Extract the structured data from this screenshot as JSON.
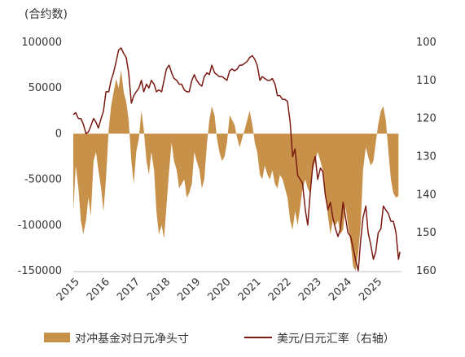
{
  "chart_data": {
    "type": "bar",
    "left_unit_label": "(合约数)",
    "x_tick_labels": [
      "2015",
      "2016",
      "2017",
      "2018",
      "2019",
      "2020",
      "2021",
      "2022",
      "2023",
      "2024",
      "2025"
    ],
    "left_axis": {
      "ticks": [
        100000,
        50000,
        0,
        -50000,
        -100000,
        -150000
      ],
      "tick_labels": [
        "100000",
        "50000",
        "0",
        "-50000",
        "-100000",
        "-150000"
      ],
      "ylim": [
        -150000,
        100000
      ]
    },
    "right_axis": {
      "ticks": [
        100,
        110,
        120,
        130,
        140,
        150,
        160
      ],
      "tick_labels": [
        "100",
        "110",
        "120",
        "130",
        "140",
        "150",
        "160"
      ],
      "ylim": [
        160,
        100
      ],
      "inverted": true
    },
    "legend_position": "bottom",
    "grid": false,
    "series": [
      {
        "name": "对冲基金对日元净头寸",
        "kind": "area",
        "axis": "left",
        "color": "#C8914A",
        "points": [
          [
            2015.0,
            -85000
          ],
          [
            2015.08,
            -35000
          ],
          [
            2015.17,
            -60000
          ],
          [
            2015.25,
            -95000
          ],
          [
            2015.33,
            -110000
          ],
          [
            2015.42,
            -95000
          ],
          [
            2015.5,
            -70000
          ],
          [
            2015.58,
            -90000
          ],
          [
            2015.67,
            -30000
          ],
          [
            2015.75,
            -20000
          ],
          [
            2015.83,
            -40000
          ],
          [
            2015.92,
            -60000
          ],
          [
            2016.0,
            -85000
          ],
          [
            2016.08,
            -50000
          ],
          [
            2016.17,
            5000
          ],
          [
            2016.25,
            30000
          ],
          [
            2016.33,
            45000
          ],
          [
            2016.42,
            60000
          ],
          [
            2016.5,
            50000
          ],
          [
            2016.58,
            70000
          ],
          [
            2016.67,
            45000
          ],
          [
            2016.75,
            35000
          ],
          [
            2016.83,
            15000
          ],
          [
            2016.92,
            -30000
          ],
          [
            2017.0,
            -55000
          ],
          [
            2017.08,
            -20000
          ],
          [
            2017.17,
            -5000
          ],
          [
            2017.25,
            25000
          ],
          [
            2017.33,
            5000
          ],
          [
            2017.42,
            -30000
          ],
          [
            2017.5,
            -45000
          ],
          [
            2017.58,
            -20000
          ],
          [
            2017.67,
            -40000
          ],
          [
            2017.75,
            -85000
          ],
          [
            2017.83,
            -110000
          ],
          [
            2017.92,
            -100000
          ],
          [
            2018.0,
            -115000
          ],
          [
            2018.08,
            -80000
          ],
          [
            2018.17,
            -40000
          ],
          [
            2018.25,
            -10000
          ],
          [
            2018.33,
            -30000
          ],
          [
            2018.42,
            -40000
          ],
          [
            2018.5,
            -60000
          ],
          [
            2018.58,
            -55000
          ],
          [
            2018.67,
            -50000
          ],
          [
            2018.75,
            -70000
          ],
          [
            2018.83,
            -65000
          ],
          [
            2018.92,
            -55000
          ],
          [
            2019.0,
            -20000
          ],
          [
            2019.08,
            -30000
          ],
          [
            2019.17,
            -40000
          ],
          [
            2019.25,
            -60000
          ],
          [
            2019.33,
            -50000
          ],
          [
            2019.42,
            -10000
          ],
          [
            2019.5,
            15000
          ],
          [
            2019.58,
            30000
          ],
          [
            2019.67,
            20000
          ],
          [
            2019.75,
            -5000
          ],
          [
            2019.83,
            -20000
          ],
          [
            2019.92,
            -30000
          ],
          [
            2020.0,
            -25000
          ],
          [
            2020.08,
            -10000
          ],
          [
            2020.17,
            20000
          ],
          [
            2020.25,
            15000
          ],
          [
            2020.33,
            10000
          ],
          [
            2020.42,
            -5000
          ],
          [
            2020.5,
            -15000
          ],
          [
            2020.58,
            -5000
          ],
          [
            2020.67,
            5000
          ],
          [
            2020.75,
            15000
          ],
          [
            2020.83,
            25000
          ],
          [
            2020.92,
            10000
          ],
          [
            2021.0,
            -10000
          ],
          [
            2021.08,
            -20000
          ],
          [
            2021.17,
            -45000
          ],
          [
            2021.25,
            -50000
          ],
          [
            2021.33,
            -35000
          ],
          [
            2021.42,
            -45000
          ],
          [
            2021.5,
            -50000
          ],
          [
            2021.58,
            -40000
          ],
          [
            2021.67,
            -55000
          ],
          [
            2021.75,
            -60000
          ],
          [
            2021.83,
            -45000
          ],
          [
            2021.92,
            -50000
          ],
          [
            2022.0,
            -60000
          ],
          [
            2022.08,
            -70000
          ],
          [
            2022.17,
            -95000
          ],
          [
            2022.25,
            -105000
          ],
          [
            2022.33,
            -85000
          ],
          [
            2022.42,
            -100000
          ],
          [
            2022.5,
            -80000
          ],
          [
            2022.58,
            -60000
          ],
          [
            2022.67,
            -50000
          ],
          [
            2022.75,
            -60000
          ],
          [
            2022.83,
            -65000
          ],
          [
            2022.92,
            -40000
          ],
          [
            2023.0,
            -30000
          ],
          [
            2023.08,
            -20000
          ],
          [
            2023.17,
            -30000
          ],
          [
            2023.25,
            -40000
          ],
          [
            2023.33,
            -65000
          ],
          [
            2023.42,
            -90000
          ],
          [
            2023.5,
            -110000
          ],
          [
            2023.58,
            -95000
          ],
          [
            2023.67,
            -100000
          ],
          [
            2023.75,
            -95000
          ],
          [
            2023.83,
            -110000
          ],
          [
            2023.92,
            -105000
          ],
          [
            2024.0,
            -80000
          ],
          [
            2024.08,
            -100000
          ],
          [
            2024.17,
            -120000
          ],
          [
            2024.25,
            -145000
          ],
          [
            2024.33,
            -150000
          ],
          [
            2024.42,
            -130000
          ],
          [
            2024.5,
            -100000
          ],
          [
            2024.58,
            -40000
          ],
          [
            2024.67,
            -15000
          ],
          [
            2024.75,
            -25000
          ],
          [
            2024.83,
            -35000
          ],
          [
            2024.92,
            -30000
          ],
          [
            2025.0,
            -10000
          ],
          [
            2025.08,
            10000
          ],
          [
            2025.17,
            25000
          ],
          [
            2025.25,
            30000
          ],
          [
            2025.33,
            15000
          ],
          [
            2025.42,
            -20000
          ],
          [
            2025.5,
            -50000
          ],
          [
            2025.58,
            -65000
          ],
          [
            2025.67,
            -70000
          ],
          [
            2025.75,
            -68000
          ]
        ]
      },
      {
        "name": "美元/日元汇率（右轴）",
        "kind": "line",
        "axis": "right",
        "color": "#7B1A12",
        "points": [
          [
            2015.0,
            119
          ],
          [
            2015.08,
            118.5
          ],
          [
            2015.17,
            120
          ],
          [
            2015.25,
            120
          ],
          [
            2015.33,
            121.5
          ],
          [
            2015.42,
            124
          ],
          [
            2015.5,
            123.5
          ],
          [
            2015.58,
            122
          ],
          [
            2015.67,
            120
          ],
          [
            2015.75,
            121
          ],
          [
            2015.83,
            122.5
          ],
          [
            2015.92,
            120
          ],
          [
            2016.0,
            118
          ],
          [
            2016.08,
            113
          ],
          [
            2016.17,
            113
          ],
          [
            2016.25,
            110
          ],
          [
            2016.33,
            108
          ],
          [
            2016.42,
            105
          ],
          [
            2016.5,
            102
          ],
          [
            2016.58,
            101.5
          ],
          [
            2016.67,
            103
          ],
          [
            2016.75,
            104
          ],
          [
            2016.83,
            108
          ],
          [
            2016.92,
            116
          ],
          [
            2017.0,
            114
          ],
          [
            2017.08,
            113
          ],
          [
            2017.17,
            112
          ],
          [
            2017.25,
            110
          ],
          [
            2017.33,
            113
          ],
          [
            2017.42,
            111
          ],
          [
            2017.5,
            112
          ],
          [
            2017.58,
            110
          ],
          [
            2017.67,
            111
          ],
          [
            2017.75,
            113
          ],
          [
            2017.83,
            112.5
          ],
          [
            2017.92,
            113
          ],
          [
            2018.0,
            110
          ],
          [
            2018.08,
            107
          ],
          [
            2018.17,
            106
          ],
          [
            2018.25,
            108
          ],
          [
            2018.33,
            109.5
          ],
          [
            2018.42,
            110
          ],
          [
            2018.5,
            111
          ],
          [
            2018.58,
            111
          ],
          [
            2018.67,
            112.5
          ],
          [
            2018.75,
            113
          ],
          [
            2018.83,
            113
          ],
          [
            2018.92,
            110
          ],
          [
            2019.0,
            108.5
          ],
          [
            2019.08,
            110
          ],
          [
            2019.17,
            111
          ],
          [
            2019.25,
            111.5
          ],
          [
            2019.33,
            109
          ],
          [
            2019.42,
            108
          ],
          [
            2019.5,
            108.5
          ],
          [
            2019.58,
            106
          ],
          [
            2019.67,
            108
          ],
          [
            2019.75,
            108.5
          ],
          [
            2019.83,
            109
          ],
          [
            2019.92,
            109
          ],
          [
            2020.0,
            109.5
          ],
          [
            2020.08,
            110
          ],
          [
            2020.17,
            107.5
          ],
          [
            2020.25,
            107
          ],
          [
            2020.33,
            107.5
          ],
          [
            2020.42,
            107
          ],
          [
            2020.5,
            106
          ],
          [
            2020.58,
            106
          ],
          [
            2020.67,
            105.5
          ],
          [
            2020.75,
            105
          ],
          [
            2020.83,
            104
          ],
          [
            2020.92,
            103.5
          ],
          [
            2021.0,
            104.5
          ],
          [
            2021.08,
            106
          ],
          [
            2021.17,
            110
          ],
          [
            2021.25,
            109
          ],
          [
            2021.33,
            109.5
          ],
          [
            2021.42,
            110
          ],
          [
            2021.5,
            110
          ],
          [
            2021.58,
            109.5
          ],
          [
            2021.67,
            111
          ],
          [
            2021.75,
            114
          ],
          [
            2021.83,
            114
          ],
          [
            2021.92,
            115
          ],
          [
            2022.0,
            115
          ],
          [
            2022.08,
            115.5
          ],
          [
            2022.17,
            121
          ],
          [
            2022.25,
            130
          ],
          [
            2022.33,
            128
          ],
          [
            2022.42,
            135
          ],
          [
            2022.5,
            136
          ],
          [
            2022.58,
            137
          ],
          [
            2022.67,
            144
          ],
          [
            2022.75,
            148
          ],
          [
            2022.83,
            140
          ],
          [
            2022.92,
            132
          ],
          [
            2023.0,
            130
          ],
          [
            2023.08,
            136
          ],
          [
            2023.17,
            133
          ],
          [
            2023.25,
            134
          ],
          [
            2023.33,
            140
          ],
          [
            2023.42,
            144
          ],
          [
            2023.5,
            142
          ],
          [
            2023.58,
            146
          ],
          [
            2023.67,
            149
          ],
          [
            2023.75,
            151
          ],
          [
            2023.83,
            149
          ],
          [
            2023.92,
            142
          ],
          [
            2024.0,
            146
          ],
          [
            2024.08,
            150
          ],
          [
            2024.17,
            151
          ],
          [
            2024.25,
            154
          ],
          [
            2024.33,
            157
          ],
          [
            2024.42,
            160
          ],
          [
            2024.5,
            152
          ],
          [
            2024.58,
            146
          ],
          [
            2024.67,
            143
          ],
          [
            2024.75,
            150
          ],
          [
            2024.83,
            153
          ],
          [
            2024.92,
            157
          ],
          [
            2025.0,
            155
          ],
          [
            2025.08,
            150
          ],
          [
            2025.17,
            149
          ],
          [
            2025.25,
            143
          ],
          [
            2025.33,
            144
          ],
          [
            2025.42,
            145
          ],
          [
            2025.5,
            147
          ],
          [
            2025.58,
            147
          ],
          [
            2025.67,
            150
          ],
          [
            2025.75,
            157
          ],
          [
            2025.8,
            155
          ]
        ]
      }
    ]
  }
}
